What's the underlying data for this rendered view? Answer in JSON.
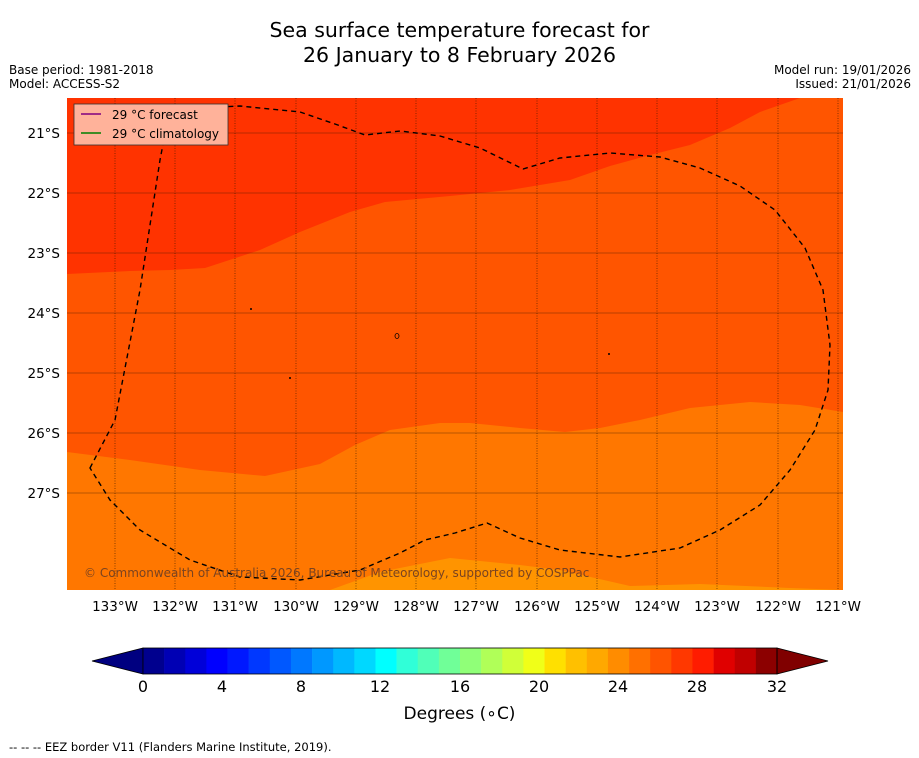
{
  "title": {
    "line1": "Sea surface temperature forecast for",
    "line2": "26 January to 8 February 2026"
  },
  "meta": {
    "base_period": "Base period: 1981-2018",
    "model": "Model: ACCESS-S2",
    "model_run": "Model run: 19/01/2026",
    "issued": "Issued: 21/01/2026"
  },
  "legend": {
    "forecast": "29 °C  forecast",
    "climatology": "29 °C  climatology",
    "forecast_color": "#800080",
    "climatology_color": "#008000"
  },
  "map": {
    "lat_labels": [
      "21°S",
      "22°S",
      "23°S",
      "24°S",
      "25°S",
      "26°S",
      "27°S"
    ],
    "lon_labels": [
      "133°W",
      "132°W",
      "131°W",
      "130°W",
      "129°W",
      "128°W",
      "127°W",
      "126°W",
      "125°W",
      "124°W",
      "123°W",
      "122°W",
      "121°W"
    ],
    "copyright": "© Commonwealth of Australia 2026, Bureau of Meteorology, supported by COSPPac",
    "colors": {
      "band_30_31": "#ff3300",
      "band_29_30": "#ff5500",
      "band_28_29": "#ff7700",
      "band_27_28": "#ff9400"
    }
  },
  "colorbar": {
    "tick_labels": [
      "0",
      "4",
      "8",
      "12",
      "16",
      "20",
      "24",
      "28",
      "32"
    ],
    "unit_label": "Degrees (∘C)",
    "colors": [
      "#00008e",
      "#0000b4",
      "#0000d9",
      "#0000ff",
      "#0018ff",
      "#0038ff",
      "#0058ff",
      "#0078ff",
      "#0098ff",
      "#00b8ff",
      "#00d8ff",
      "#00ffff",
      "#30ffd8",
      "#50ffb8",
      "#70ff98",
      "#90ff78",
      "#b0ff58",
      "#d0ff38",
      "#f0ff18",
      "#ffe000",
      "#ffc000",
      "#ffa800",
      "#ff8c00",
      "#ff7000",
      "#ff5400",
      "#ff3800",
      "#ff1c00",
      "#e00000",
      "#c00000",
      "#8c0000"
    ],
    "under_color": "#000080",
    "over_color": "#800000"
  },
  "footer": "--  --  -- EEZ border V11 (Flanders Marine Institute, 2019)."
}
